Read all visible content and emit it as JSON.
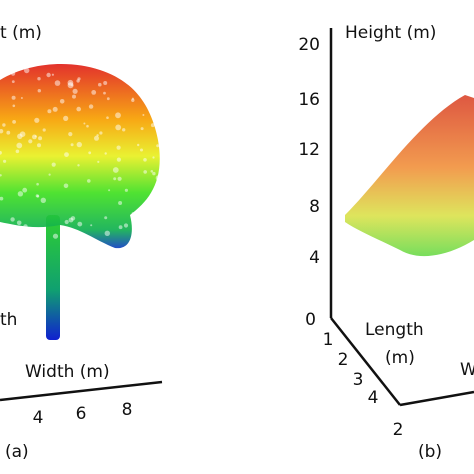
{
  "panel_a": {
    "axis_title_top": "t (m)",
    "axis_title_side": "th",
    "axis_title_width": "Width (m)",
    "width_ticks": [
      4,
      6,
      8
    ],
    "caption": "(a)"
  },
  "panel_b": {
    "axis_title_height": "Height (m)",
    "height_ticks": [
      20,
      16,
      12,
      8,
      4,
      0
    ],
    "axis_title_length": "Length",
    "axis_unit_length": "(m)",
    "length_ticks": [
      1,
      2,
      3,
      4
    ],
    "axis_title_width": "W",
    "width_ticks": [
      2
    ],
    "caption": "(b)"
  }
}
